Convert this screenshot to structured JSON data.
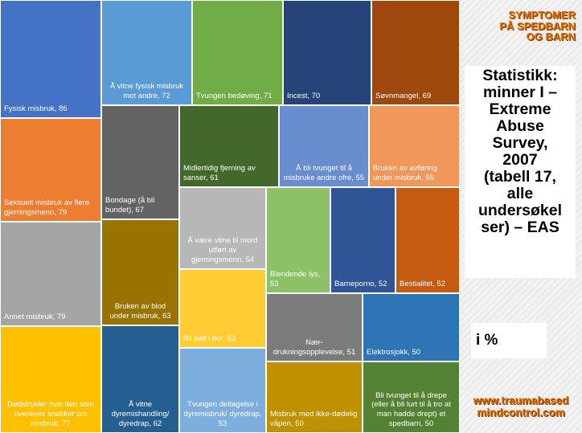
{
  "header": {
    "top_title_lines": [
      "SYMPTOMER",
      "PÅ SPEDBARN",
      "OG BARN"
    ],
    "stat_title_lines": [
      "Statistikk:",
      "minner I –",
      "Extreme",
      "Abuse",
      "Survey,",
      "2007",
      "(tabell 17,",
      "alle",
      "undersøkel",
      "ser) – EAS"
    ],
    "unit_label": "i %",
    "site_lines": [
      "www.traumabased",
      "mindcontrol.com"
    ]
  },
  "chart_data": {
    "type": "treemap",
    "unit": "i %",
    "items": [
      {
        "label": "Fysisk misbruk, 86",
        "value": 86,
        "color": "#4472c4"
      },
      {
        "label": "Seksuelt misbruk av flere gjerningsmenn, 79",
        "value": 79,
        "color": "#ed7d31"
      },
      {
        "label": "Annet misbruk, 79",
        "value": 79,
        "color": "#a5a5a5"
      },
      {
        "label": "Dødstrusler hvis den som overlever snakker om misbruk, 77",
        "value": 77,
        "color": "#ffc000"
      },
      {
        "label": "Å vitne fysisk misbruk mot andre, 72",
        "value": 72,
        "color": "#5b9bd5"
      },
      {
        "label": "Tvungen bedøving, 71",
        "value": 71,
        "color": "#70ad47"
      },
      {
        "label": "Incest, 70",
        "value": 70,
        "color": "#264478"
      },
      {
        "label": "Søvnmangel, 69",
        "value": 69,
        "color": "#9e480e"
      },
      {
        "label": "Bondage (å bli bundet), 67",
        "value": 67,
        "color": "#636363"
      },
      {
        "label": "Bruken av blod under misbruk, 63",
        "value": 63,
        "color": "#997300"
      },
      {
        "label": "Å vitne dyremishandling/ dyredrap, 62",
        "value": 62,
        "color": "#255e91"
      },
      {
        "label": "Midlertidig fjerning av sanser, 61",
        "value": 61,
        "color": "#43682b"
      },
      {
        "label": "Å bli tvunget til å misbruke andre ofre, 55",
        "value": 55,
        "color": "#698ed0"
      },
      {
        "label": "Bruken av avføring under misbruk, 55",
        "value": 55,
        "color": "#f1975a"
      },
      {
        "label": "Å være vitne til mord utført av gjerningsmenn, 54",
        "value": 54,
        "color": "#b7b7b7"
      },
      {
        "label": "Blendende lys, 53",
        "value": 53,
        "color": "#8cc168"
      },
      {
        "label": "Bli satt i bur, 53",
        "value": 53,
        "color": "#ffcd33"
      },
      {
        "label": "Tvungen deltagelse i dyremisbruk/ dyredrap, 53",
        "value": 53,
        "color": "#7cafdd"
      },
      {
        "label": "Barneporno, 52",
        "value": 52,
        "color": "#2f5597"
      },
      {
        "label": "Bestialitet, 52",
        "value": 52,
        "color": "#c55a11"
      },
      {
        "label": "Nær-drukningsopplevelse, 51",
        "value": 51,
        "color": "#7b7b7b"
      },
      {
        "label": "Elektrosjokk, 50",
        "value": 50,
        "color": "#2e75b6"
      },
      {
        "label": "Misbruk med ikke-dødelig våpen, 50",
        "value": 50,
        "color": "#bf9000"
      },
      {
        "label": "Bli tvunget til å drepe (eller å bli lurt til å tro at man hadde drept) et spedbarn, 50",
        "value": 50,
        "color": "#548235"
      }
    ]
  }
}
